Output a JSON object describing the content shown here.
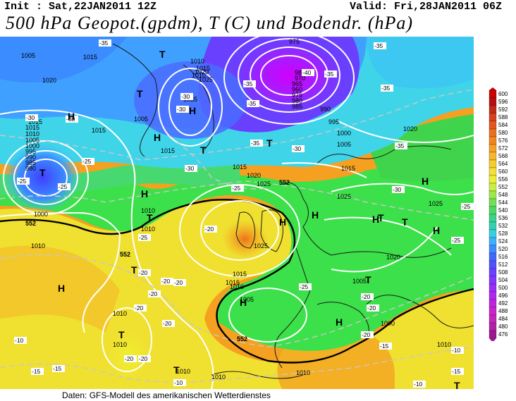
{
  "header": {
    "init": "Init : Sat,22JAN2011 12Z",
    "valid": "Valid: Fri,28JAN2011 06Z",
    "title": "500 hPa Geopot.(gpdm), T (C) und Bodendr. (hPa)"
  },
  "footer": "Daten: GFS-Modell des amerikanischen Wetterdienstes",
  "colors": {
    "purple": "#b000e0",
    "violet": "#7a30ff",
    "blue": "#3a6cff",
    "cyan": "#40d8ff",
    "green": "#3ce04a",
    "yellow": "#f0ee30",
    "orange": "#f5a020",
    "red": "#e83a1a"
  },
  "legend": {
    "values": [
      "600",
      "596",
      "592",
      "588",
      "584",
      "580",
      "576",
      "572",
      "568",
      "564",
      "560",
      "556",
      "552",
      "548",
      "544",
      "540",
      "536",
      "532",
      "528",
      "524",
      "520",
      "516",
      "512",
      "508",
      "504",
      "500",
      "496",
      "492",
      "488",
      "484",
      "480",
      "476"
    ],
    "colors": [
      "#cc0000",
      "#b80e10",
      "#c22a1a",
      "#d8401e",
      "#e4561e",
      "#ee6f1c",
      "#f3861e",
      "#f7a024",
      "#f8b62a",
      "#f7cc2e",
      "#f4e032",
      "#eeee38",
      "#c8f040",
      "#9ee84a",
      "#72e056",
      "#4ed862",
      "#38d48a",
      "#34d0b4",
      "#38d0e0",
      "#3ab0ff",
      "#3c8cff",
      "#4068ff",
      "#5050ff",
      "#6840ff",
      "#8434ff",
      "#9a2cf8",
      "#b028f0",
      "#c024e0",
      "#cc24cc",
      "#c624b8",
      "#b420a4",
      "#9c1890"
    ]
  },
  "pressure_labels": [
    "1005",
    "1015",
    "1020",
    "1010",
    "1015",
    "1010",
    "1020",
    "1025",
    "1035",
    "1015",
    "975",
    "980",
    "970",
    "965",
    "960",
    "975",
    "980",
    "985",
    "990",
    "995",
    "1000",
    "1005",
    "1015",
    "1020",
    "1025",
    "1015",
    "1005",
    "1000",
    "995",
    "990",
    "985",
    "980",
    "1015",
    "1010",
    "1005",
    "1000",
    "1015",
    "1015",
    "1020",
    "1025",
    "1025",
    "1015",
    "1010",
    "1005",
    "1010",
    "1010",
    "1010",
    "1010",
    "1010",
    "1005",
    "1020",
    "1025",
    "1015",
    "1010",
    "1010",
    "1000",
    "1010",
    "1010"
  ],
  "temp_labels": [
    "-35",
    "-35",
    "-35",
    "-35",
    "-30",
    "-30",
    "-30",
    "-35",
    "-30",
    "-35",
    "-40",
    "-35",
    "-35",
    "-30",
    "-25",
    "-25",
    "-30",
    "-25",
    "-25",
    "-30",
    "-25",
    "-20",
    "-20",
    "-20",
    "-20",
    "-20",
    "-25",
    "-20",
    "-20",
    "-15",
    "-15",
    "-10",
    "-10",
    "-20",
    "-25",
    "-25",
    "-20",
    "-20",
    "-20",
    "-15",
    "-15",
    "-10",
    "-20",
    "-10"
  ],
  "H_count": 12,
  "T_count": 13,
  "system_symbols": [
    "H",
    "T"
  ],
  "contour_labels_552": [
    "552",
    "552",
    "552",
    "552"
  ]
}
